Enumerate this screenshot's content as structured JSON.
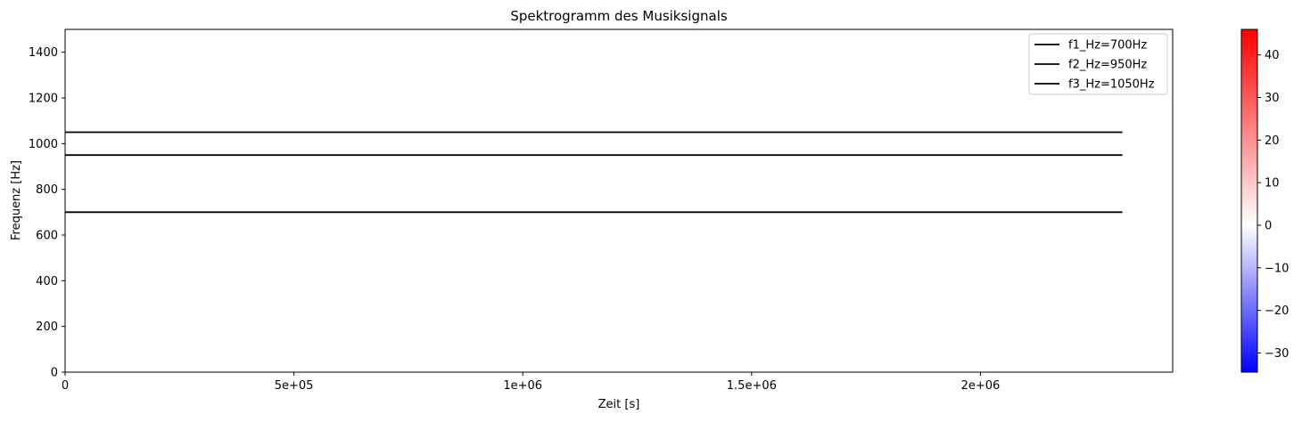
{
  "chart_data": {
    "type": "line",
    "title": "Spektrogramm des Musiksignals",
    "xlabel": "Zeit [s]",
    "ylabel": "Frequenz [Hz]",
    "xlim": [
      0,
      2420000
    ],
    "ylim": [
      0,
      1500
    ],
    "x_ticks": [
      0,
      500000,
      1000000,
      1500000,
      2000000
    ],
    "x_tick_labels": [
      "0",
      "5e+05",
      "1e+06",
      "1.5e+06",
      "2e+06"
    ],
    "y_ticks": [
      0,
      200,
      400,
      600,
      800,
      1000,
      1200,
      1400
    ],
    "y_tick_labels": [
      "0",
      "200",
      "400",
      "600",
      "800",
      "1000",
      "1200",
      "1400"
    ],
    "grid": false,
    "legend_position": "top-right",
    "series": [
      {
        "name": "f1_Hz=700Hz",
        "color": "#000000",
        "x": [
          0,
          2310000
        ],
        "y": [
          700,
          700
        ]
      },
      {
        "name": "f2_Hz=950Hz",
        "color": "#000000",
        "x": [
          0,
          2310000
        ],
        "y": [
          950,
          950
        ]
      },
      {
        "name": "f3_Hz=1050Hz",
        "color": "#000000",
        "x": [
          0,
          2310000
        ],
        "y": [
          1050,
          1050
        ]
      }
    ],
    "colorbar": {
      "colormap": "bwr",
      "colors": [
        "#0000ff",
        "#ffffff",
        "#ff0000"
      ],
      "range": [
        -34.5,
        46
      ],
      "ticks": [
        -30,
        -20,
        -10,
        0,
        10,
        20,
        30,
        40
      ],
      "tick_labels": [
        "−30",
        "−20",
        "−10",
        "0",
        "10",
        "20",
        "30",
        "40"
      ]
    }
  }
}
